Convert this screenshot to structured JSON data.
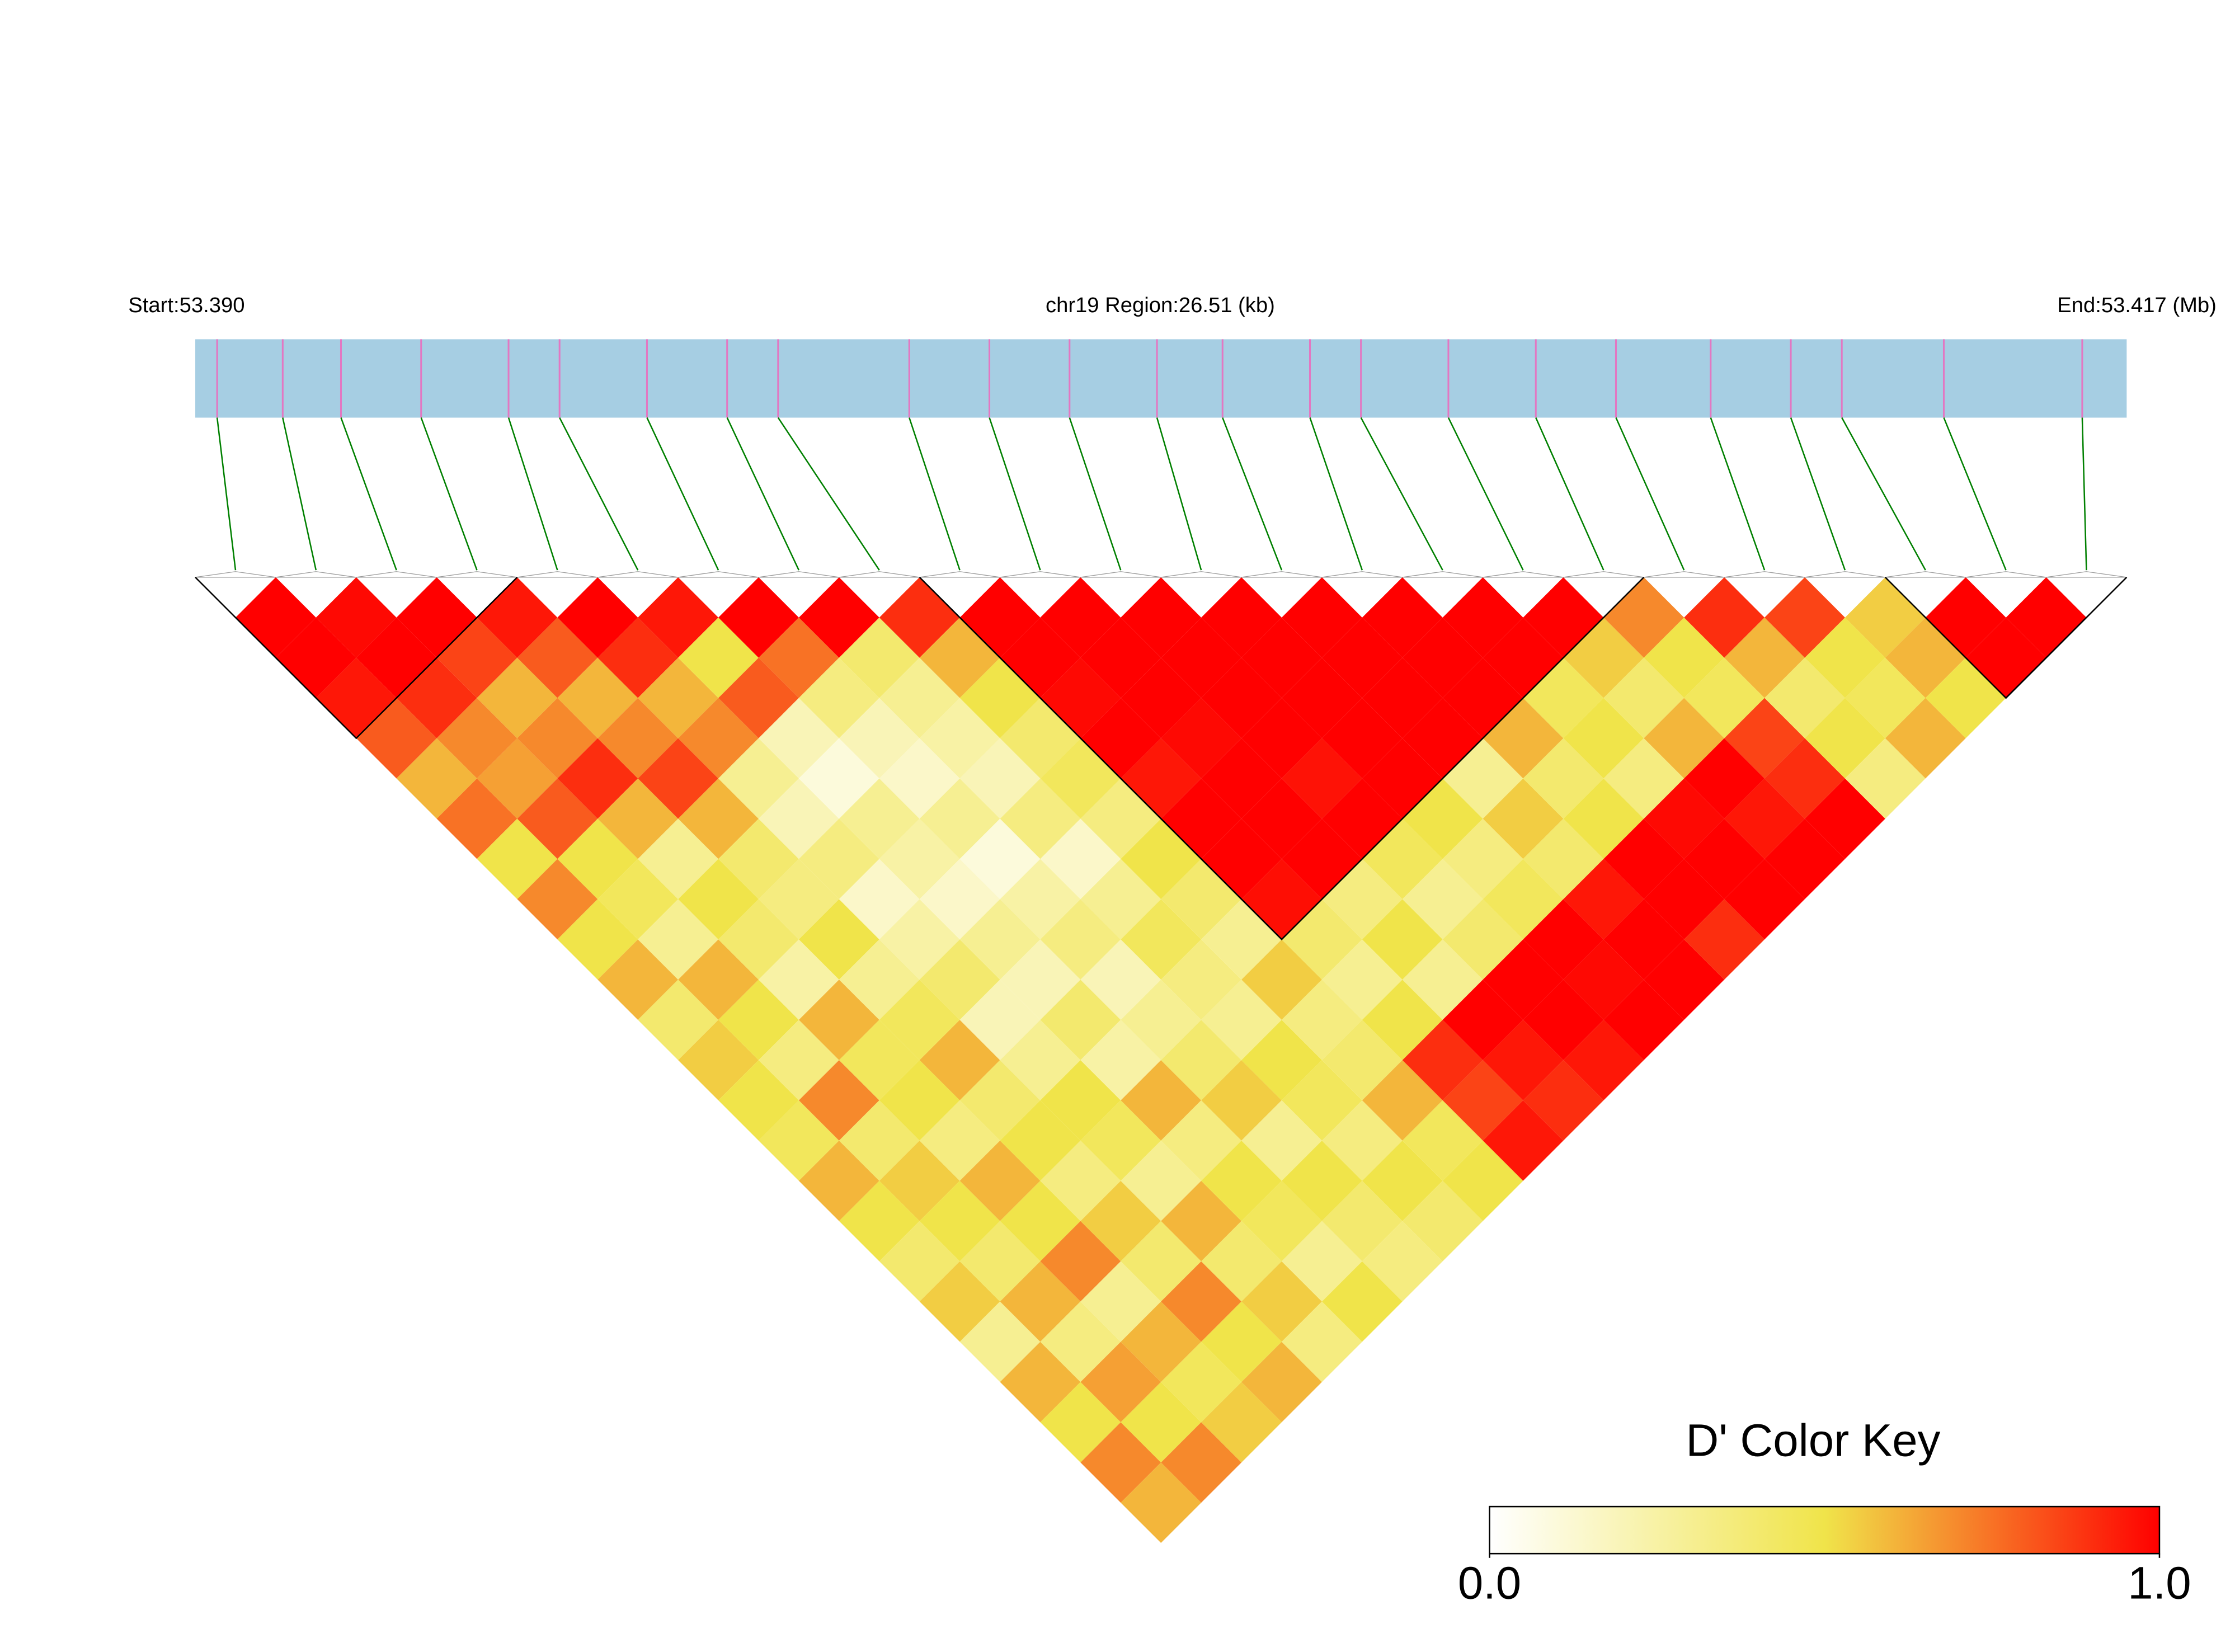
{
  "chart_data": {
    "type": "heatmap",
    "start_label": "Start:53.390",
    "region_label": "chr19 Region:26.51 (kb)",
    "end_label": "End:53.417 (Mb)",
    "legend_title": "D' Color Key",
    "xlim": [
      0,
      26.51
    ],
    "snp_positions": [
      0.3,
      1.2,
      2.0,
      3.1,
      4.3,
      5.0,
      6.2,
      7.3,
      8.0,
      9.8,
      10.9,
      12.0,
      13.2,
      14.1,
      15.3,
      16.0,
      17.2,
      18.4,
      19.5,
      20.8,
      21.9,
      22.6,
      24.0,
      25.9
    ],
    "matrix": [
      [
        1,
        1,
        0.95,
        0.8,
        0.6,
        0.75,
        0.5,
        0.7,
        0.5,
        0.6,
        0.4,
        0.55,
        0.5,
        0.45,
        0.6,
        0.5,
        0.4,
        0.55,
        0.3,
        0.6,
        0.5,
        0.7,
        0.6
      ],
      [
        0.98,
        1,
        0.9,
        0.7,
        0.65,
        0.8,
        0.5,
        0.45,
        0.3,
        0.6,
        0.5,
        0.35,
        0.7,
        0.4,
        0.55,
        0.5,
        0.4,
        0.6,
        0.35,
        0.65,
        0.5,
        0.7
      ],
      [
        1,
        0.85,
        0.6,
        0.7,
        0.9,
        0.6,
        0.3,
        0.5,
        0.4,
        0.25,
        0.6,
        0.45,
        0.5,
        0.35,
        0.6,
        0.5,
        0.7,
        0.3,
        0.6,
        0.45,
        0.55
      ],
      [
        0.95,
        0.8,
        0.6,
        0.7,
        0.85,
        0.6,
        0.4,
        0.35,
        0.5,
        0.3,
        0.45,
        0.6,
        0.4,
        0.5,
        0.35,
        0.55,
        0.4,
        0.7,
        0.5,
        0.6
      ],
      [
        1,
        0.9,
        0.6,
        0.7,
        0.3,
        0.2,
        0.35,
        0.15,
        0.25,
        0.4,
        0.2,
        0.3,
        0.5,
        0.45,
        0.3,
        0.6,
        0.4,
        0.55,
        0.35
      ],
      [
        0.95,
        0.5,
        0.8,
        0.2,
        0.1,
        0.3,
        0.25,
        0.15,
        0.3,
        0.2,
        0.4,
        0.25,
        0.6,
        0.35,
        0.5,
        0.45,
        0.3,
        0.5
      ],
      [
        1,
        0.75,
        0.35,
        0.2,
        0.15,
        0.3,
        0.1,
        0.25,
        0.35,
        0.2,
        0.3,
        0.4,
        0.55,
        0.3,
        0.5,
        0.4,
        0.35
      ],
      [
        1,
        0.4,
        0.3,
        0.25,
        0.2,
        0.35,
        0.15,
        0.3,
        0.45,
        0.35,
        0.3,
        0.5,
        0.45,
        0.35,
        0.5,
        0.4
      ],
      [
        0.9,
        0.6,
        0.5,
        0.4,
        0.45,
        0.35,
        0.5,
        0.4,
        0.3,
        0.55,
        0.35,
        0.4,
        0.6,
        0.45,
        0.5
      ],
      [
        1,
        1,
        0.98,
        1,
        0.95,
        1,
        1,
        0.97,
        0.4,
        0.3,
        0.5,
        0.9,
        0.85,
        0.95
      ],
      [
        1,
        1,
        1,
        0.98,
        1,
        1,
        1,
        0.35,
        0.5,
        0.3,
        1,
        0.95,
        0.9
      ],
      [
        1,
        1,
        1,
        1,
        0.96,
        1,
        0.45,
        0.3,
        0.4,
        1,
        1,
        0.95
      ],
      [
        1,
        1,
        1,
        1,
        1,
        0.5,
        0.35,
        0.45,
        1,
        0.98,
        1
      ],
      [
        1,
        1,
        1,
        1,
        0.3,
        0.55,
        0.4,
        0.95,
        1,
        1
      ],
      [
        1,
        1,
        1,
        0.6,
        0.4,
        0.5,
        1,
        1,
        0.9
      ],
      [
        1,
        1,
        0.45,
        0.5,
        0.35,
        0.98,
        1,
        1
      ],
      [
        1,
        0.55,
        0.4,
        0.6,
        1,
        0.95,
        1
      ],
      [
        0.7,
        0.5,
        0.45,
        0.85,
        0.9,
        1
      ],
      [
        0.9,
        0.6,
        0.4,
        0.5,
        0.35
      ],
      [
        0.85,
        0.5,
        0.45,
        0.6
      ],
      [
        0.55,
        0.6,
        0.5
      ],
      [
        1,
        1
      ],
      [
        1
      ]
    ],
    "blocks": [
      [
        0,
        3
      ],
      [
        9,
        17
      ],
      [
        21,
        23
      ]
    ],
    "clim": [
      0,
      1
    ],
    "colors": [
      "#ffffff",
      "#f0e44a",
      "#ff0000"
    ],
    "bar_color": "#a6cee3",
    "snp_mark_color": "#e377c2",
    "connector_color": "#008000",
    "colorbar_ticks": [
      {
        "value": 0,
        "label": "0.0"
      },
      {
        "value": 1,
        "label": "1.0"
      }
    ]
  }
}
